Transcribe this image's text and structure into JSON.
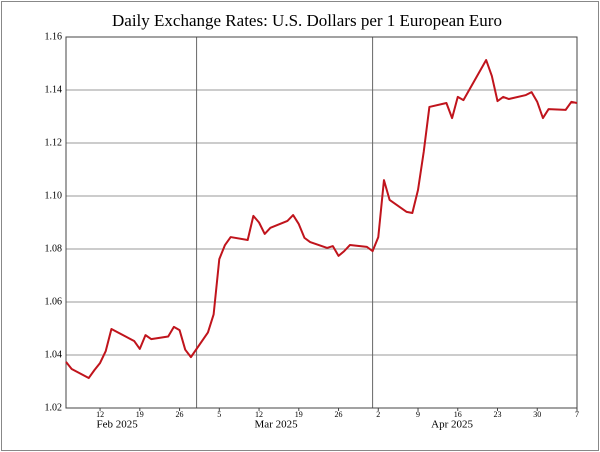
{
  "chart_data": {
    "type": "line",
    "title": "Daily Exchange Rates: U.S. Dollars per 1 European Euro",
    "color": "#c0141c",
    "x": [
      "2025-02-06",
      "2025-02-07",
      "2025-02-10",
      "2025-02-11",
      "2025-02-12",
      "2025-02-13",
      "2025-02-14",
      "2025-02-18",
      "2025-02-19",
      "2025-02-20",
      "2025-02-21",
      "2025-02-24",
      "2025-02-25",
      "2025-02-26",
      "2025-02-27",
      "2025-02-28",
      "2025-03-03",
      "2025-03-04",
      "2025-03-05",
      "2025-03-06",
      "2025-03-07",
      "2025-03-10",
      "2025-03-11",
      "2025-03-12",
      "2025-03-13",
      "2025-03-14",
      "2025-03-17",
      "2025-03-18",
      "2025-03-19",
      "2025-03-20",
      "2025-03-21",
      "2025-03-24",
      "2025-03-25",
      "2025-03-26",
      "2025-03-27",
      "2025-03-28",
      "2025-03-31",
      "2025-04-01",
      "2025-04-02",
      "2025-04-03",
      "2025-04-04",
      "2025-04-07",
      "2025-04-08",
      "2025-04-09",
      "2025-04-10",
      "2025-04-11",
      "2025-04-14",
      "2025-04-15",
      "2025-04-16",
      "2025-04-17",
      "2025-04-21",
      "2025-04-22",
      "2025-04-23",
      "2025-04-24",
      "2025-04-25",
      "2025-04-28",
      "2025-04-29",
      "2025-04-30",
      "2025-05-01",
      "2025-05-02",
      "2025-05-05",
      "2025-05-06",
      "2025-05-07"
    ],
    "values": [
      1.0374,
      1.0347,
      1.0313,
      1.0343,
      1.037,
      1.0415,
      1.0498,
      1.0453,
      1.0423,
      1.0475,
      1.046,
      1.047,
      1.0506,
      1.0494,
      1.042,
      1.0392,
      1.0485,
      1.0553,
      1.0762,
      1.0815,
      1.0845,
      1.0834,
      1.0925,
      1.09,
      1.0857,
      1.088,
      1.0906,
      1.0928,
      1.0894,
      1.0842,
      1.0826,
      1.0804,
      1.0811,
      1.0774,
      1.0792,
      1.0815,
      1.0808,
      1.0792,
      1.0845,
      1.106,
      1.0985,
      1.094,
      1.0936,
      1.1023,
      1.1166,
      1.1336,
      1.1351,
      1.1294,
      1.1374,
      1.1362,
      1.1513,
      1.1453,
      1.1358,
      1.1374,
      1.1366,
      1.1381,
      1.1392,
      1.1355,
      1.1294,
      1.1328,
      1.1325,
      1.1355,
      1.1351
    ],
    "xlim": [
      "2025-02-06",
      "2025-05-07"
    ],
    "xticks": [
      {
        "value": "2025-02-12",
        "label": "12"
      },
      {
        "value": "2025-02-19",
        "label": "19"
      },
      {
        "value": "2025-02-26",
        "label": "26"
      },
      {
        "value": "2025-03-05",
        "label": "5"
      },
      {
        "value": "2025-03-12",
        "label": "12"
      },
      {
        "value": "2025-03-19",
        "label": "19"
      },
      {
        "value": "2025-03-26",
        "label": "26"
      },
      {
        "value": "2025-04-02",
        "label": "2"
      },
      {
        "value": "2025-04-09",
        "label": "9"
      },
      {
        "value": "2025-04-16",
        "label": "16"
      },
      {
        "value": "2025-04-23",
        "label": "23"
      },
      {
        "value": "2025-04-30",
        "label": "30"
      },
      {
        "value": "2025-05-07",
        "label": "7"
      }
    ],
    "x_month_labels": [
      {
        "value": "2025-02-15",
        "label": "Feb 2025"
      },
      {
        "value": "2025-03-15",
        "label": "Mar 2025"
      },
      {
        "value": "2025-04-15",
        "label": "Apr 2025"
      }
    ],
    "x_gridlines": [
      "2025-03-01",
      "2025-04-01"
    ],
    "ylim": [
      1.02,
      1.16
    ],
    "yticks": [
      1.02,
      1.04,
      1.06,
      1.08,
      {
        "value": 1.1,
        "label": "1.10"
      },
      1.12,
      1.14,
      1.16
    ],
    "grid": true
  }
}
